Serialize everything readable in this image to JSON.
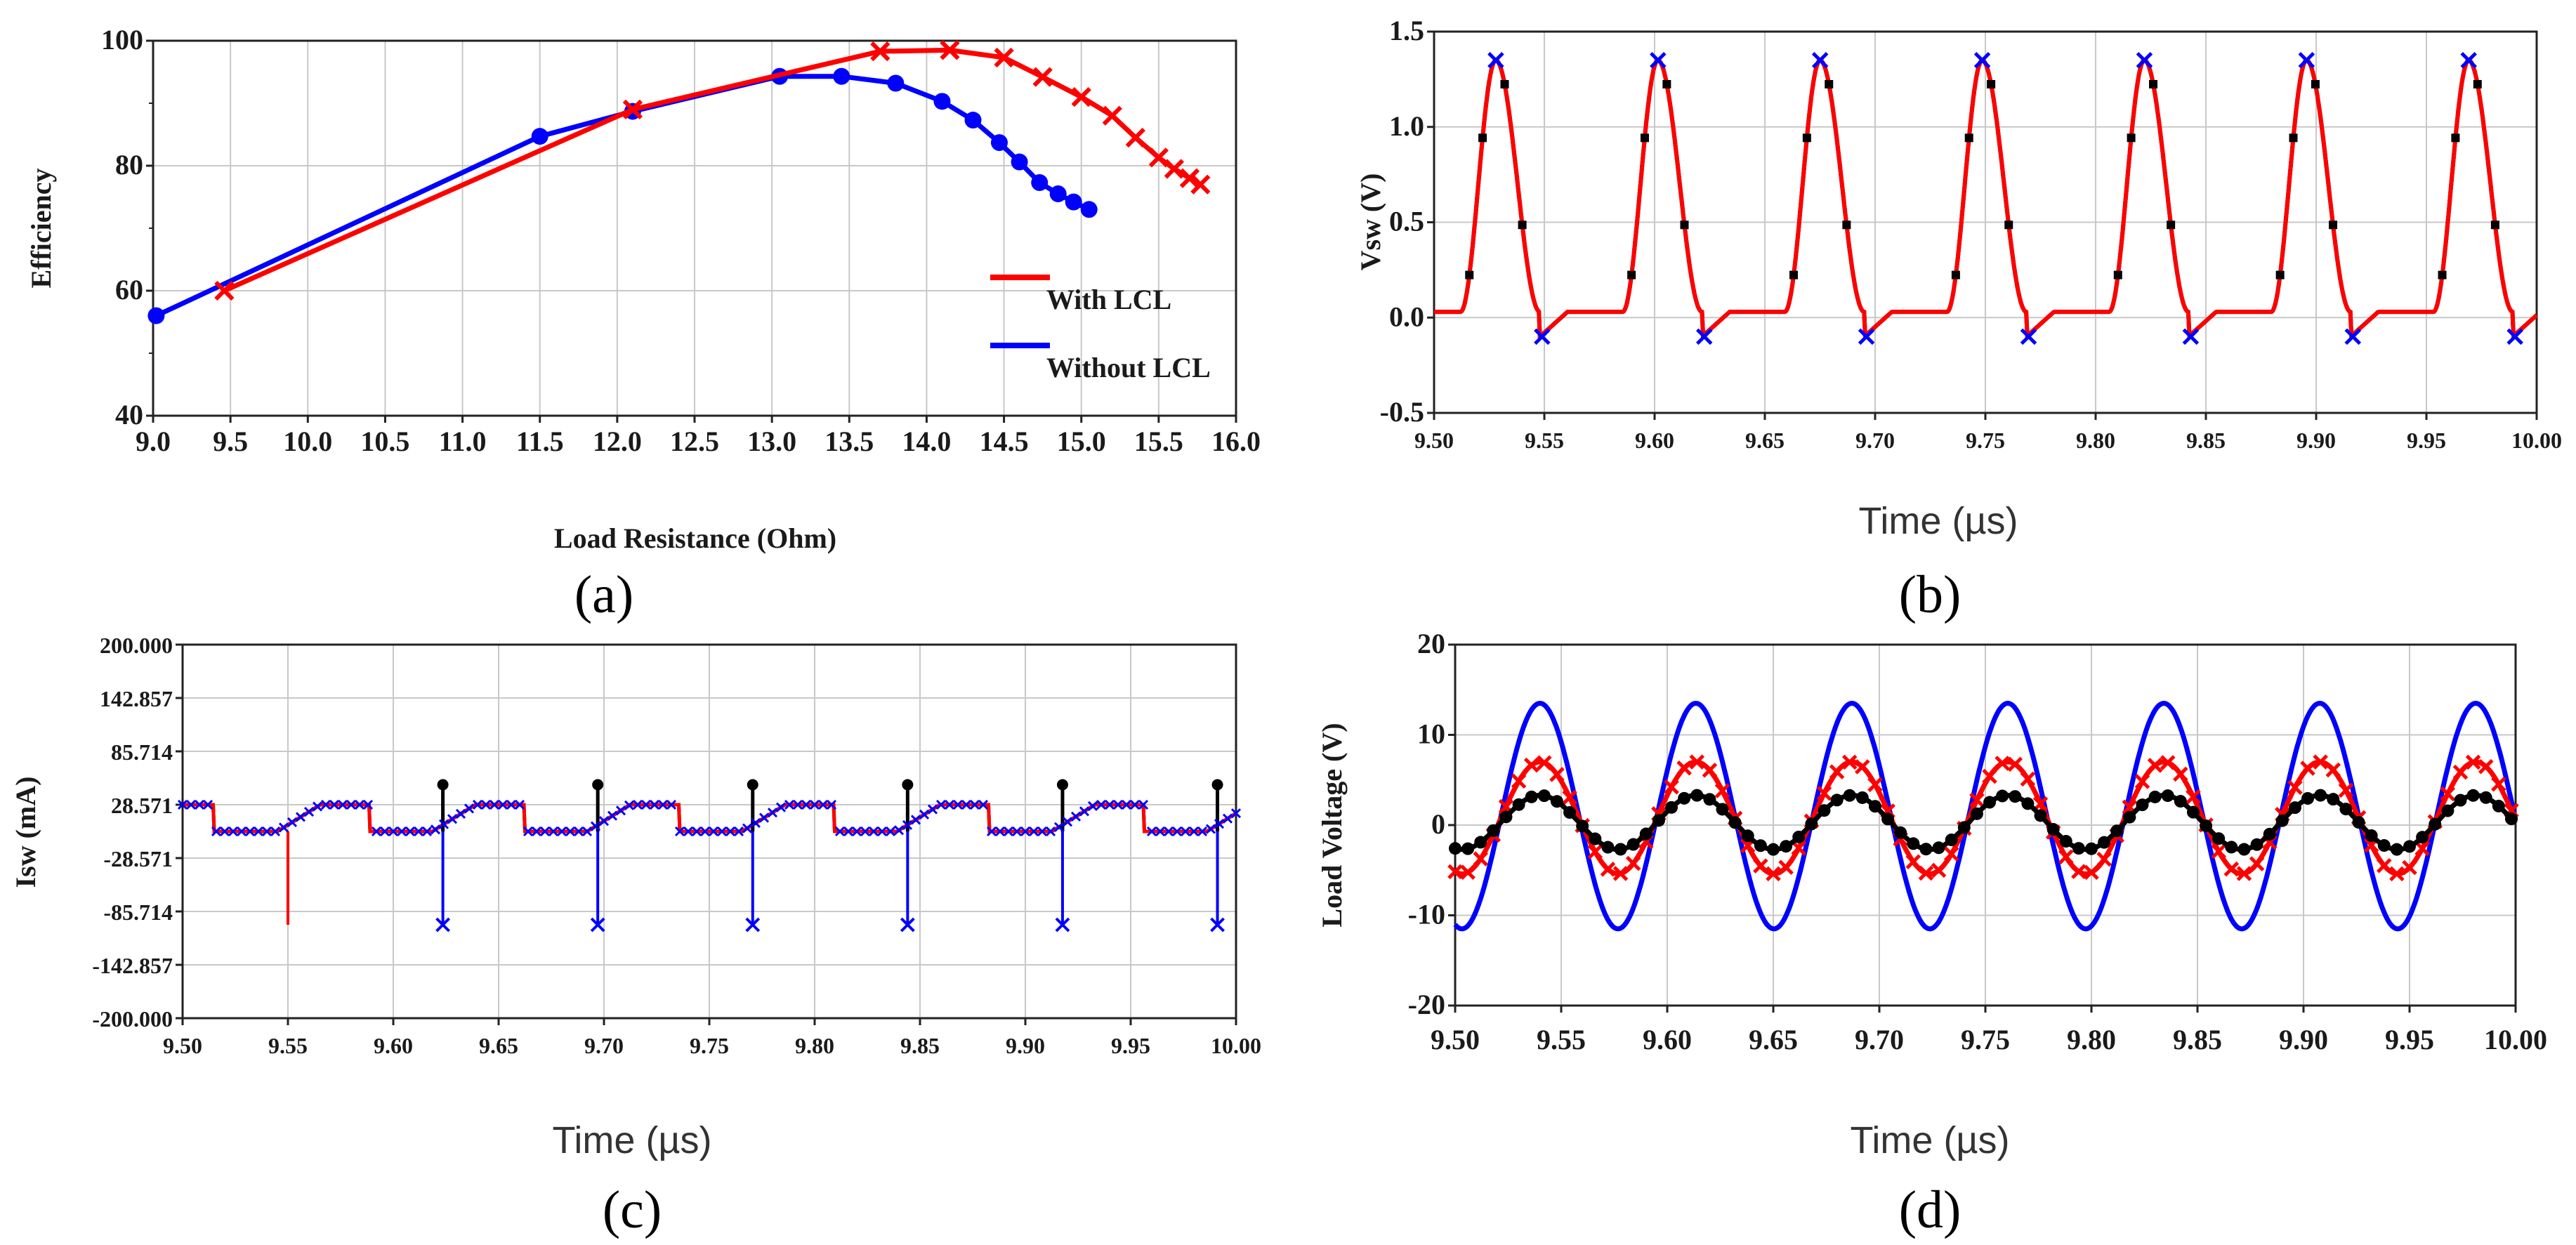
{
  "chart_data": [
    {
      "type": "line",
      "panel_label": "(a)",
      "xlabel": "Load Resistance (Ohm)",
      "ylabel": "Efficiency",
      "xlim": [
        9.0,
        16.0
      ],
      "ylim": [
        40,
        100
      ],
      "x_ticks": [
        "9.0",
        "9.5",
        "10.0",
        "10.5",
        "11.0",
        "11.5",
        "12.0",
        "12.5",
        "13.0",
        "13.5",
        "14.0",
        "14.5",
        "15.0",
        "15.5",
        "16.0"
      ],
      "y_ticks": [
        "40",
        "60",
        "80",
        "100"
      ],
      "grid": true,
      "legend_placement": "right-center",
      "series": [
        {
          "name": "With LCL",
          "color": "#ff0000",
          "marker": "x",
          "x": [
            9.46,
            12.1,
            13.7,
            14.15,
            14.5,
            14.75,
            15.0,
            15.2,
            15.35,
            15.5,
            15.6,
            15.7,
            15.77
          ],
          "y": [
            60,
            89,
            98.3,
            98.5,
            97.3,
            94.2,
            91,
            88,
            84.5,
            81.3,
            79.5,
            78,
            77
          ]
        },
        {
          "name": "Without LCL",
          "color": "#0000ff",
          "marker": "o",
          "x": [
            9.02,
            11.5,
            12.1,
            13.05,
            13.45,
            13.8,
            14.1,
            14.3,
            14.47,
            14.6,
            14.73,
            14.85,
            14.95,
            15.05
          ],
          "y": [
            56,
            84.7,
            88.7,
            94.3,
            94.3,
            93.2,
            90.3,
            87.3,
            83.7,
            80.6,
            77.3,
            75.5,
            74.2,
            73
          ]
        }
      ]
    },
    {
      "type": "line",
      "panel_label": "(b)",
      "xlabel": "Time (µs)",
      "ylabel": "Vsw (V)",
      "xlim": [
        9.5,
        10.0
      ],
      "ylim": [
        -0.5,
        1.5
      ],
      "x_ticks": [
        "9.50",
        "9.55",
        "9.60",
        "9.65",
        "9.70",
        "9.75",
        "9.80",
        "9.85",
        "9.90",
        "9.95",
        "10.00"
      ],
      "y_ticks": [
        "-0.5",
        "0.0",
        "0.5",
        "1.0",
        "1.5"
      ],
      "grid": true,
      "period_us": 0.07353,
      "first_peak_us": 9.528,
      "peak_value": 1.35,
      "floor_value": 0.03,
      "undershoot_value": -0.1,
      "series": [
        {
          "color": "#ff0000",
          "marker": "none"
        },
        {
          "color": "#000000",
          "marker": "square"
        },
        {
          "color": "#0000ff",
          "marker": "x"
        }
      ]
    },
    {
      "type": "line",
      "panel_label": "(c)",
      "xlabel": "Time (µs)",
      "ylabel": "Isw (mA)",
      "xlim": [
        9.5,
        10.0
      ],
      "ylim": [
        -200,
        200
      ],
      "x_ticks": [
        "9.50",
        "9.55",
        "9.60",
        "9.65",
        "9.70",
        "9.75",
        "9.80",
        "9.85",
        "9.90",
        "9.95",
        "10.00"
      ],
      "y_ticks": [
        "200.000",
        "142.857",
        "85.714",
        "28.571",
        "-28.571",
        "-85.714",
        "-142.857",
        "-200.000"
      ],
      "grid": true,
      "period_us": 0.07353,
      "high_level_ma": 28.571,
      "low_level_ma": 0,
      "spike_min_ma": -100,
      "spike_max_ma": 50,
      "series": [
        {
          "color": "#ff0000",
          "marker": "none"
        },
        {
          "color": "#000000",
          "marker": "circle"
        },
        {
          "color": "#0000ff",
          "marker": "x"
        }
      ]
    },
    {
      "type": "line",
      "panel_label": "(d)",
      "xlabel": "Time (µs)",
      "ylabel": "Load Voltage (V)",
      "xlim": [
        9.5,
        10.0
      ],
      "ylim": [
        -20,
        20
      ],
      "x_ticks": [
        "9.50",
        "9.55",
        "9.60",
        "9.65",
        "9.70",
        "9.75",
        "9.80",
        "9.85",
        "9.90",
        "9.95",
        "10.00"
      ],
      "y_ticks": [
        "20",
        "10",
        "0",
        "-10",
        "-20"
      ],
      "grid": true,
      "period_us": 0.07353,
      "first_peak_us": 9.54,
      "series": [
        {
          "color": "#0000ff",
          "marker": "none",
          "amplitude": 12.5,
          "offset": 1.0
        },
        {
          "color": "#ff0000",
          "marker": "x",
          "amplitude": 6.2,
          "offset": 0.8
        },
        {
          "color": "#000000",
          "marker": "circle",
          "amplitude": 3.0,
          "offset": 0.3
        }
      ]
    }
  ]
}
